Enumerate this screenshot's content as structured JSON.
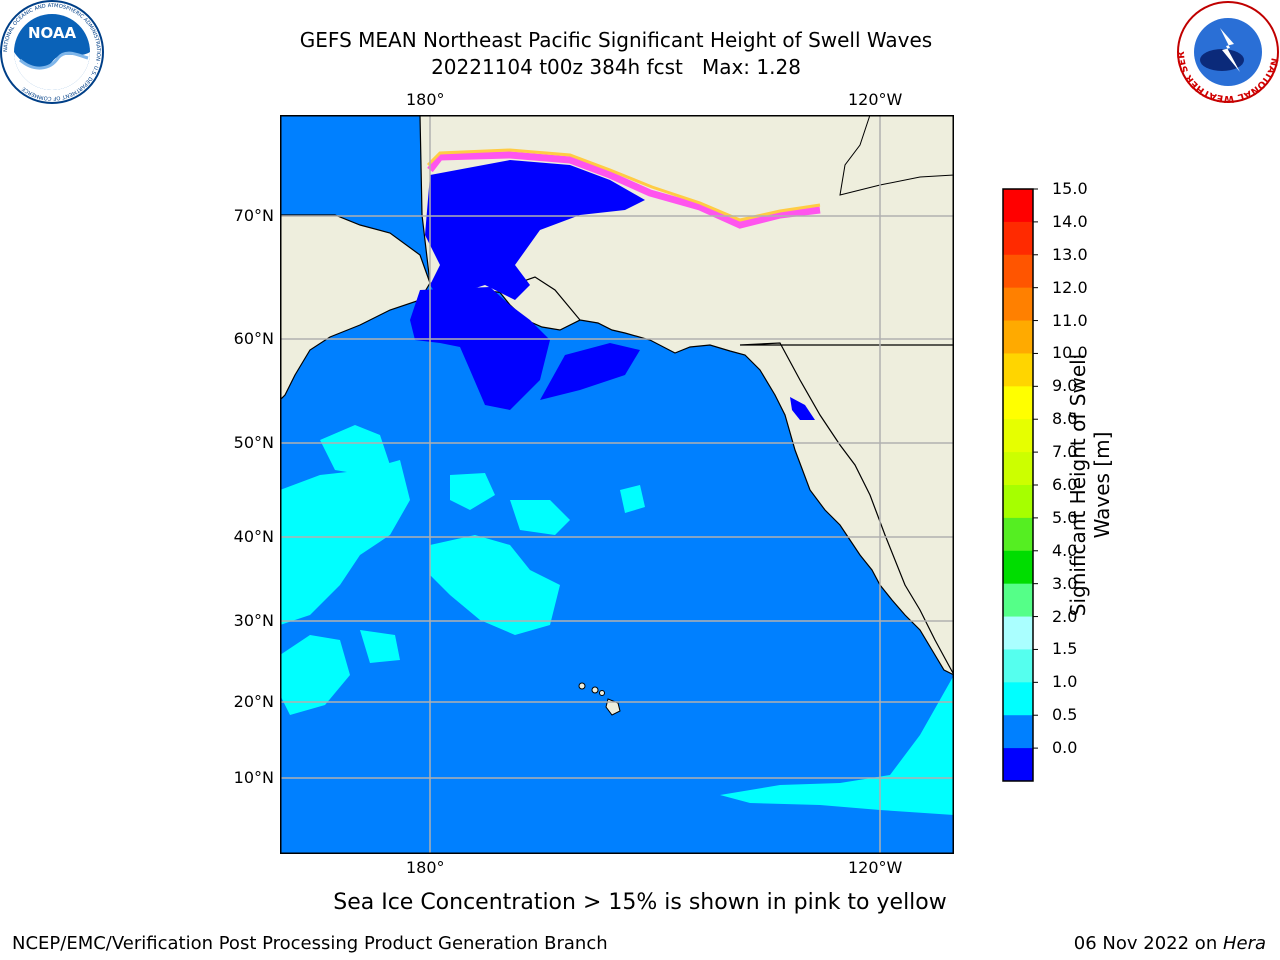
{
  "title": {
    "line1": "GEFS MEAN Northeast Pacific Significant Height of Swell Waves",
    "line2": "20221104 t00z 384h fcst   Max: 1.28"
  },
  "map": {
    "lon_labels": [
      "180°",
      "120°W"
    ],
    "lat_labels": [
      "70°N",
      "60°N",
      "50°N",
      "40°N",
      "30°N",
      "20°N",
      "10°N"
    ],
    "colors": {
      "land": "#eeeedd",
      "ocean_0_5": "#0000ff",
      "ocean_0_5_1_0": "#0080ff",
      "ocean_1_0_1_5": "#00ffff",
      "grid": "#b0b0b0",
      "ice_pink": "#ff55ee",
      "ice_yellow": "#ffcc44"
    }
  },
  "colorbar": {
    "label": "Significant Height of Swell Waves [m]",
    "label_line1": "Significant Height of Swell",
    "label_line2": "Waves [m]",
    "ticks": [
      "15.0",
      "14.0",
      "13.0",
      "12.0",
      "11.0",
      "10.0",
      "9.0",
      "8.0",
      "7.0",
      "6.0",
      "5.0",
      "4.0",
      "3.0",
      "2.0",
      "1.5",
      "1.0",
      "0.5",
      "0.0"
    ],
    "bands_top_to_bottom": [
      "#ff0000",
      "#ff2a00",
      "#ff5500",
      "#ff8000",
      "#ffaa00",
      "#ffd500",
      "#ffff00",
      "#e6ff00",
      "#ccff00",
      "#a6ff00",
      "#55ee22",
      "#00dd00",
      "#55ff88",
      "#aaffff",
      "#55ffee",
      "#00ffff",
      "#0080ff",
      "#0000ff"
    ]
  },
  "caption": "Sea Ice Concentration > 15% is shown in pink to yellow",
  "footer": {
    "credit": "NCEP/EMC/Verification Post Processing Product Generation Branch",
    "date": "06 Nov 2022 on ",
    "machine": "Hera"
  },
  "logos": {
    "noaa": "NOAA",
    "noaa_ring": "NATIONAL OCEANIC AND ATMOSPHERIC ADMINISTRATION · U.S. DEPARTMENT OF COMMERCE",
    "nws_ring": "NATIONAL WEATHER SERVICE"
  }
}
